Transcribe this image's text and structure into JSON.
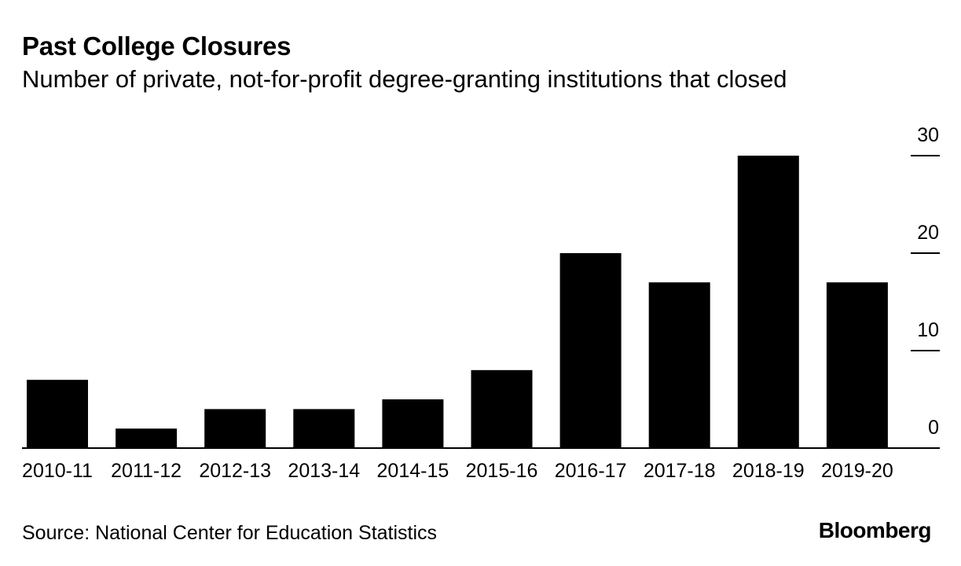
{
  "chart_data": {
    "type": "bar",
    "title": "Past College Closures",
    "subtitle": "Number of private, not-for-profit degree-granting institutions that closed",
    "categories": [
      "2010-11",
      "2011-12",
      "2012-13",
      "2013-14",
      "2014-15",
      "2015-16",
      "2016-17",
      "2017-18",
      "2018-19",
      "2019-20"
    ],
    "values": [
      7,
      2,
      4,
      4,
      5,
      8,
      20,
      17,
      30,
      17
    ],
    "ylim": [
      0,
      30
    ],
    "yticks": [
      0,
      10,
      20,
      30
    ],
    "ytick_labels": [
      "0",
      "10",
      "20",
      "30"
    ],
    "xlabel": "",
    "ylabel": "",
    "y_axis_position": "right",
    "grid": false,
    "bar_color": "#000000"
  },
  "footer": {
    "source": "Source: National Center for Education Statistics",
    "brand": "Bloomberg"
  }
}
